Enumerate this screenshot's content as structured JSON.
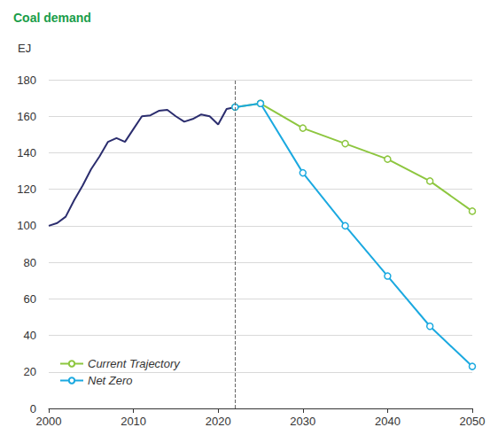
{
  "chart_data": {
    "type": "line",
    "title": "Coal demand",
    "y_label": "EJ",
    "xlim": [
      2000,
      2050
    ],
    "xticks": [
      2000,
      2010,
      2020,
      2030,
      2040,
      2050
    ],
    "ylim": [
      0,
      180
    ],
    "yticks": [
      0,
      20,
      40,
      60,
      80,
      100,
      120,
      140,
      160,
      180
    ],
    "grid": true,
    "legend": "lower left",
    "divider_x": 2022,
    "series": [
      {
        "color": "#2b2d6e",
        "marker": "none",
        "x": [
          2000,
          2001,
          2002,
          2003,
          2004,
          2005,
          2006,
          2007,
          2008,
          2009,
          2010,
          2011,
          2012,
          2013,
          2014,
          2015,
          2016,
          2017,
          2018,
          2019,
          2020,
          2021,
          2022
        ],
        "values": [
          100,
          101.5,
          105,
          114,
          122,
          131,
          138,
          146,
          148,
          146,
          153,
          160,
          160.5,
          163,
          163.5,
          160,
          157,
          158.5,
          161,
          160,
          155.5,
          164,
          165
        ]
      },
      {
        "name": "Current Trajectory",
        "color": "#8dc63f",
        "marker": "circle",
        "x": [
          2022,
          2025,
          2030,
          2035,
          2040,
          2045,
          2050
        ],
        "values": [
          165,
          167,
          153.5,
          145,
          136.5,
          124.5,
          108
        ]
      },
      {
        "name": "Net Zero",
        "color": "#1ba9e0",
        "marker": "circle",
        "x": [
          2022,
          2025,
          2030,
          2035,
          2040,
          2045,
          2050
        ],
        "values": [
          165,
          167,
          129,
          100,
          72.5,
          45,
          23
        ]
      }
    ]
  }
}
